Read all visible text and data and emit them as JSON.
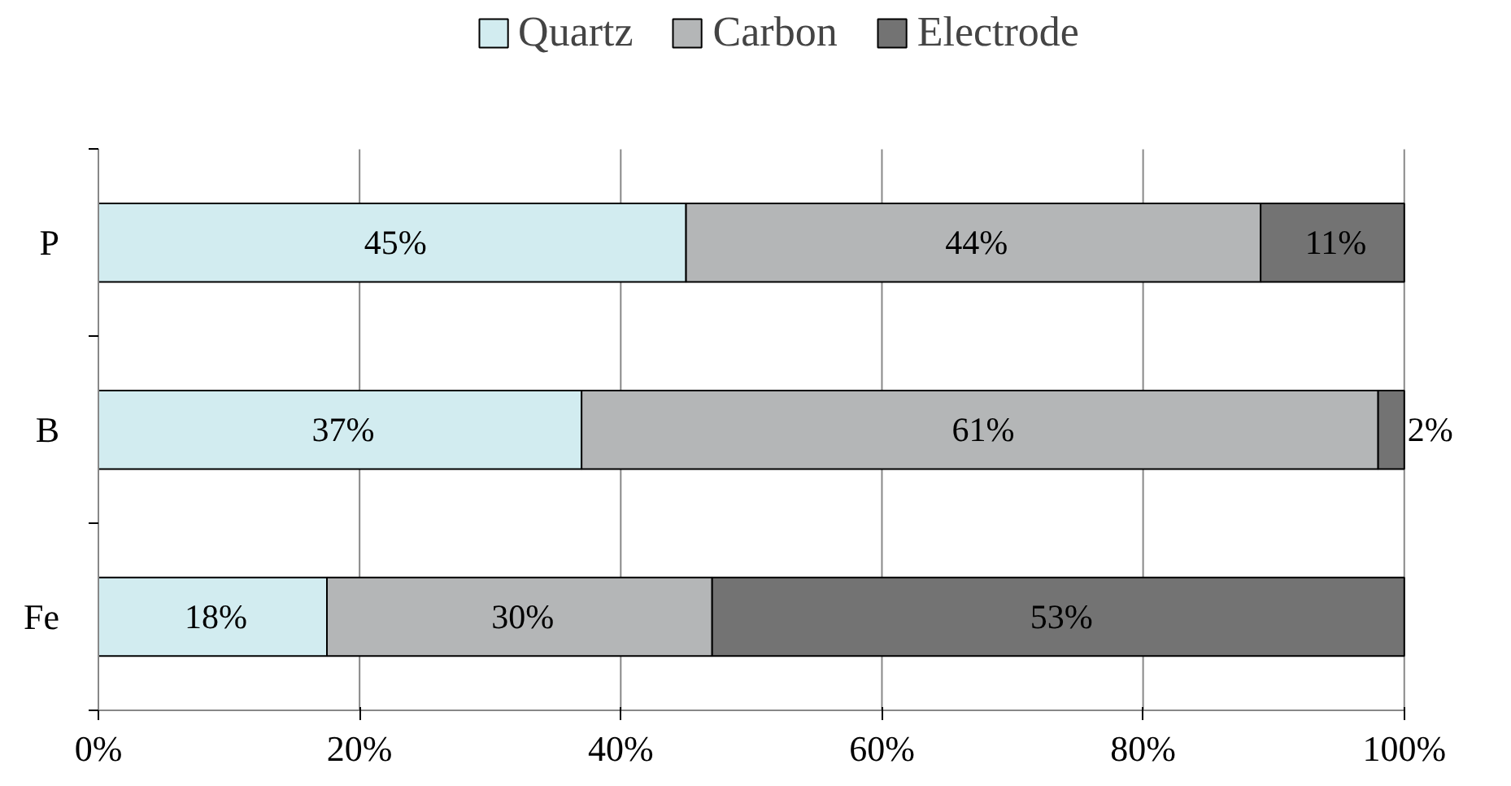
{
  "chart_data": {
    "type": "bar",
    "orientation": "horizontal",
    "stacked": true,
    "categories": [
      "P",
      "B",
      "Fe"
    ],
    "series": [
      {
        "name": "Quartz",
        "color": "#d2ecf0",
        "values": [
          45,
          37,
          17.5
        ],
        "value_labels": [
          "45%",
          "37%",
          "18%"
        ]
      },
      {
        "name": "Carbon",
        "color": "#b4b6b7",
        "values": [
          44,
          61,
          29.5
        ],
        "value_labels": [
          "44%",
          "61%",
          "30%"
        ]
      },
      {
        "name": "Electrode",
        "color": "#737373",
        "values": [
          11,
          2,
          53
        ],
        "value_labels": [
          "11%",
          "2%",
          "53%"
        ]
      }
    ],
    "xlim": [
      0,
      100
    ],
    "xticks": [
      {
        "value": 0,
        "label": "0%"
      },
      {
        "value": 20,
        "label": "20%"
      },
      {
        "value": 40,
        "label": "40%"
      },
      {
        "value": 60,
        "label": "60%"
      },
      {
        "value": 80,
        "label": "80%"
      },
      {
        "value": 100,
        "label": "100%"
      }
    ],
    "grid": "x",
    "legend": "top"
  }
}
